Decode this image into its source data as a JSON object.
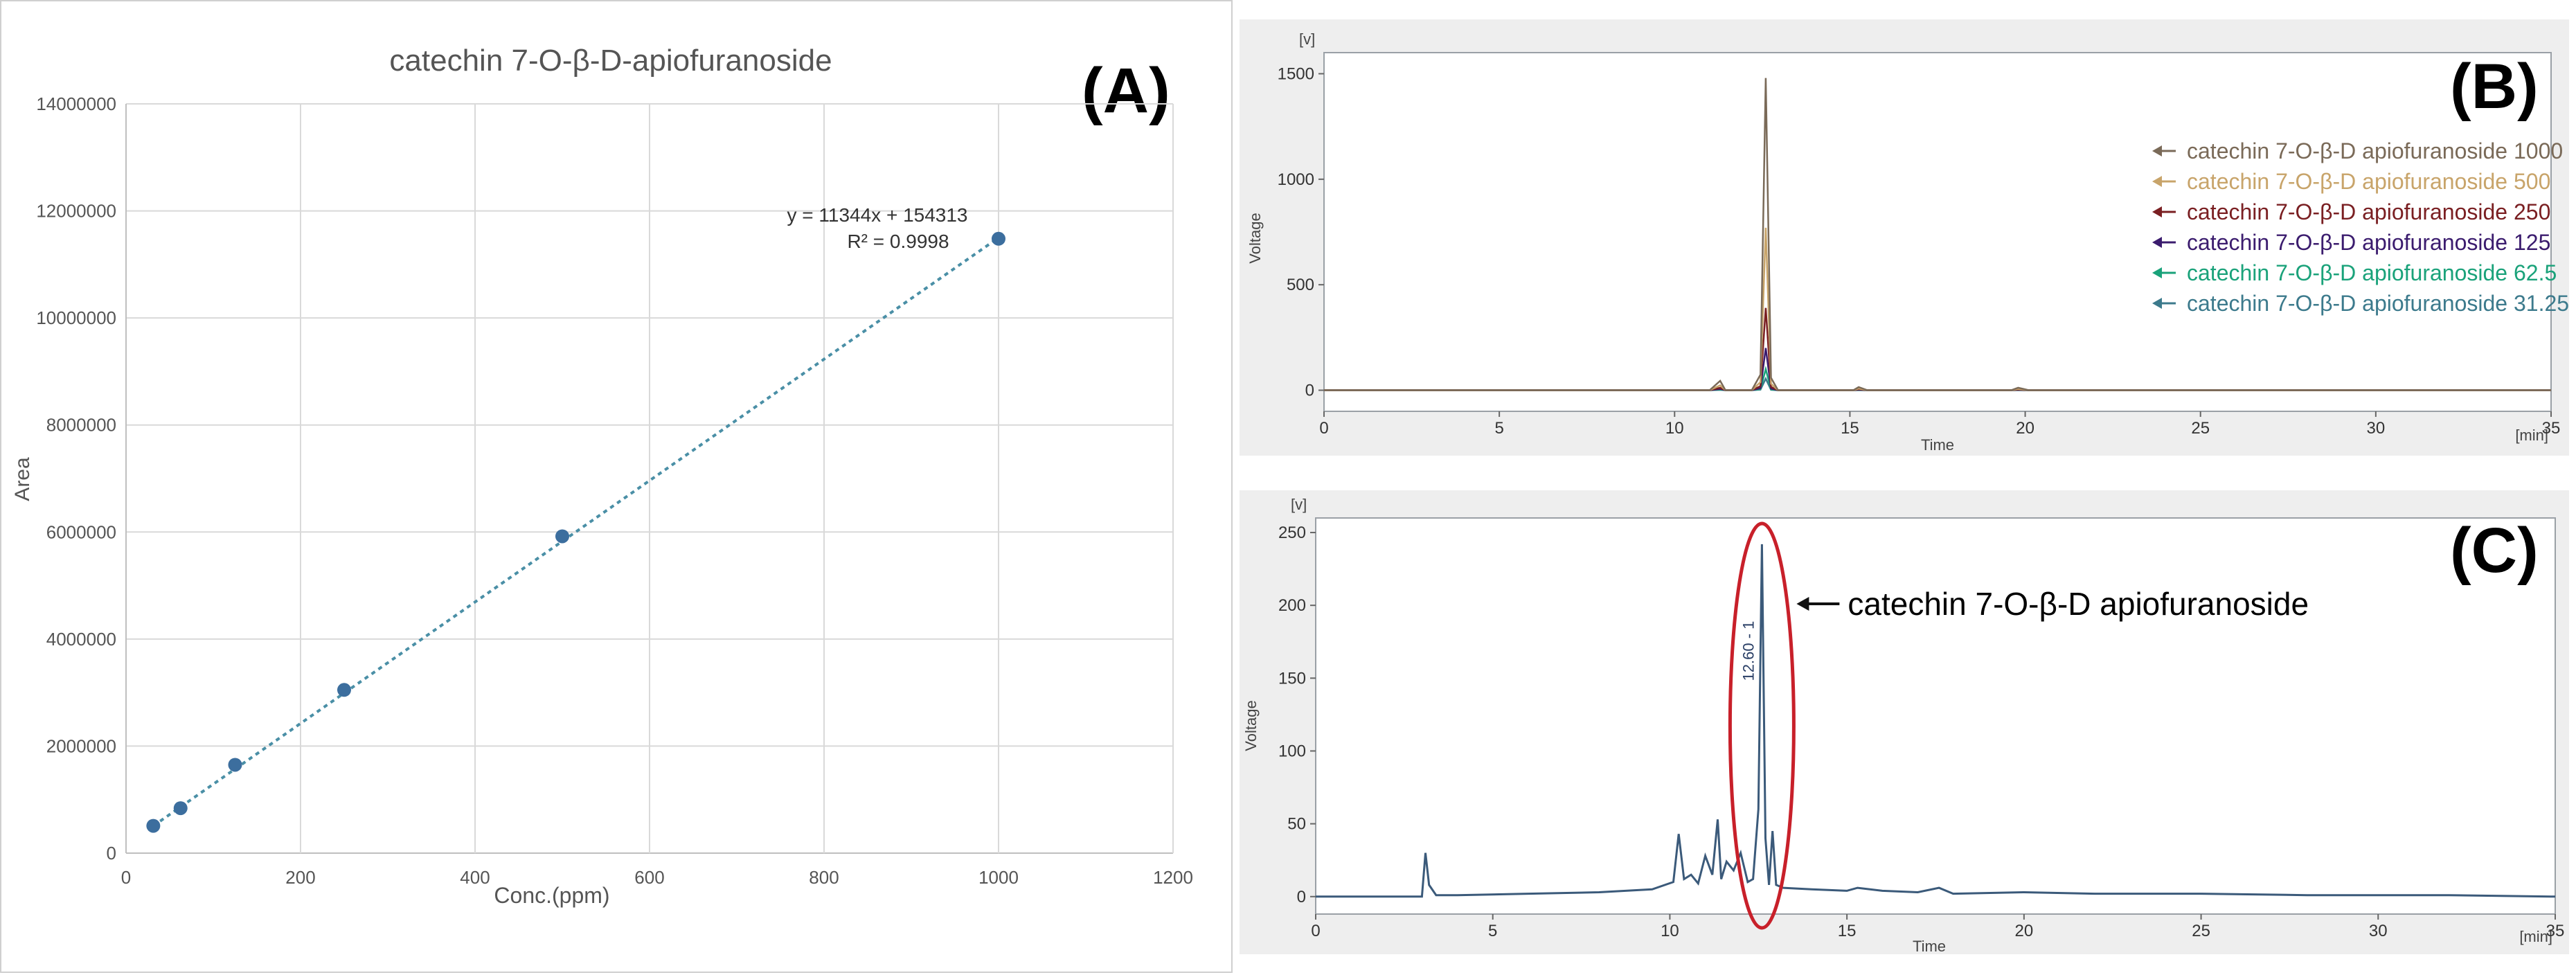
{
  "panelA": {
    "letter": "(A)",
    "chart_data": {
      "type": "scatter",
      "title": "catechin 7-O-β-D-apiofuranoside",
      "xlabel": "Conc.(ppm)",
      "ylabel": "Area",
      "xlim": [
        0,
        1200
      ],
      "ylim": [
        0,
        14000000
      ],
      "xticks": [
        "0",
        "200",
        "400",
        "600",
        "800",
        "1000",
        "1200"
      ],
      "yticks": [
        "0",
        "2000000",
        "4000000",
        "6000000",
        "8000000",
        "10000000",
        "12000000",
        "14000000"
      ],
      "grid": true,
      "x": [
        31.25,
        62.5,
        125,
        250,
        500,
        1000
      ],
      "y": [
        510000,
        840000,
        1650000,
        3050000,
        5920000,
        11480000
      ],
      "trendline": {
        "slope": 11344,
        "intercept": 154313,
        "equation": "y = 11344x + 154313",
        "r2": "R² = 0.9998"
      },
      "colors": {
        "point": "#3c6e9e",
        "trend": "#4a8fa6",
        "grid": "#d9d9d9"
      }
    }
  },
  "panelB": {
    "letter": "(B)",
    "chart_data": {
      "type": "line",
      "unit_y": "[v]",
      "unit_x": "[min]",
      "xlabel": "Time",
      "ylabel": "Voltage",
      "xlim": [
        0,
        35
      ],
      "ylim": [
        -100,
        1600
      ],
      "xticks": [
        "0",
        "5",
        "10",
        "15",
        "20",
        "25",
        "30",
        "35"
      ],
      "yticks": [
        "0",
        "500",
        "1000",
        "1500"
      ],
      "peak_time": 12.6,
      "series": [
        {
          "name": "catechin 7-O-β-D apiofuranoside 1000",
          "peak": 1480,
          "color": "#7a6a58"
        },
        {
          "name": "catechin 7-O-β-D apiofuranoside 500",
          "peak": 770,
          "color": "#c8a46a"
        },
        {
          "name": "catechin 7-O-β-D apiofuranoside 250",
          "peak": 390,
          "color": "#7a1f22"
        },
        {
          "name": "catechin 7-O-β-D apiofuranoside 125",
          "peak": 200,
          "color": "#3b1c6e"
        },
        {
          "name": "catechin 7-O-β-D apiofuranoside 62.5",
          "peak": 100,
          "color": "#1aa27a"
        },
        {
          "name": "catechin 7-O-β-D apiofuranoside 31.25",
          "peak": 55,
          "color": "#3c7a8c"
        }
      ]
    }
  },
  "panelC": {
    "letter": "(C)",
    "chart_data": {
      "type": "line",
      "unit_y": "[v]",
      "unit_x": "[min]",
      "xlabel": "Time",
      "ylabel": "Voltage",
      "xlim": [
        0,
        35
      ],
      "ylim": [
        -12,
        260
      ],
      "xticks": [
        "0",
        "5",
        "10",
        "15",
        "20",
        "25",
        "30",
        "35"
      ],
      "yticks": [
        "0",
        "50",
        "100",
        "150",
        "200",
        "250"
      ],
      "peak_label": "12.60 - 1",
      "annotation": "catechin 7-O-β-D apiofuranoside",
      "colors": {
        "line": "#3b5a7a",
        "ellipse": "#c8202a",
        "arrow": "#111111"
      },
      "series": [
        {
          "x": [
            0,
            3.0,
            3.1,
            3.2,
            3.4,
            4.0,
            6.0,
            8.0,
            9.5,
            10.1,
            10.25,
            10.4,
            10.6,
            10.8,
            11.0,
            11.2,
            11.35,
            11.45,
            11.6,
            11.8,
            12.0,
            12.2,
            12.35,
            12.5,
            12.6,
            12.7,
            12.8,
            12.9,
            13.0,
            13.2,
            14.0,
            15.0,
            15.3,
            16.0,
            17.0,
            17.6,
            18.0,
            20.0,
            22.0,
            25.0,
            28.0,
            30.0,
            32.0,
            35.0
          ],
          "y": [
            0,
            0,
            30,
            8,
            1,
            1,
            2,
            3,
            5,
            10,
            43,
            12,
            15,
            9,
            28,
            15,
            53,
            12,
            24,
            18,
            30,
            10,
            12,
            60,
            242,
            40,
            8,
            45,
            8,
            6,
            5,
            4,
            6,
            4,
            3,
            6,
            2,
            3,
            2,
            2,
            1,
            1,
            1,
            0
          ]
        }
      ]
    }
  }
}
